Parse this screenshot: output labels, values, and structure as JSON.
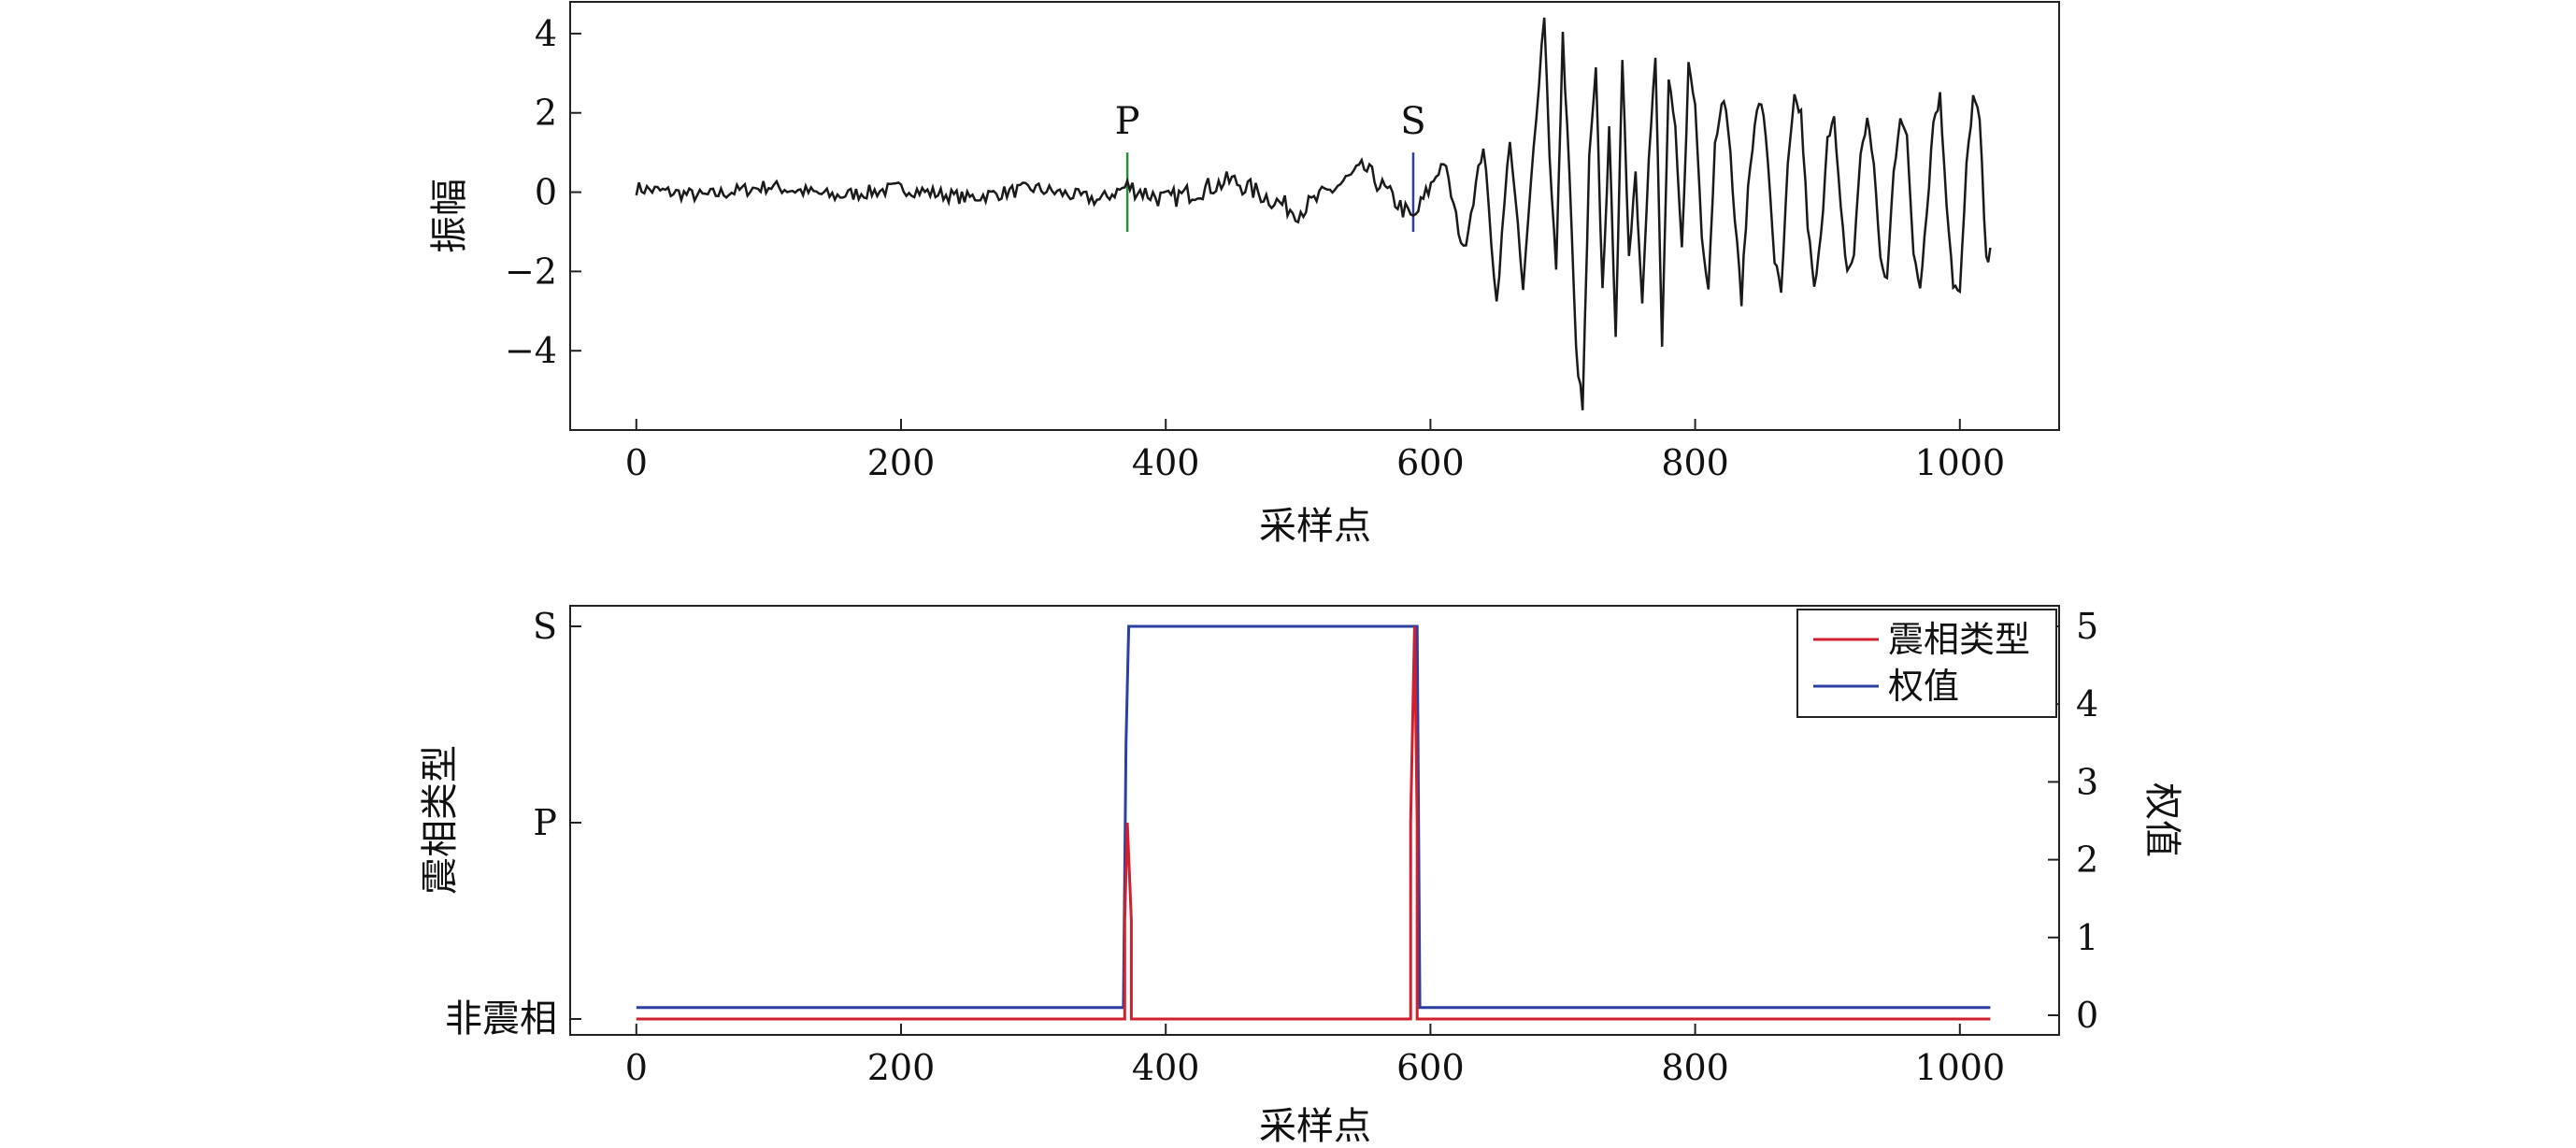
{
  "chart_data": [
    {
      "type": "line",
      "xlabel": "采样点",
      "ylabel": "振幅",
      "xlim": [
        -50,
        1075
      ],
      "ylim": [
        -6,
        4.8
      ],
      "xticks": [
        "0",
        "200",
        "400",
        "600",
        "800",
        "1000"
      ],
      "yticks": [
        "4",
        "2",
        "0",
        "−2",
        "−4"
      ],
      "grid": false,
      "markers": [
        {
          "label": "P",
          "x": 371,
          "y_range": [
            -1,
            1
          ],
          "color": "#2e8b3a"
        },
        {
          "label": "S",
          "x": 587,
          "y_range": [
            -1,
            1
          ],
          "color": "#2b3fa0"
        }
      ],
      "series": [
        {
          "color": "#1a1a1a",
          "x": [
            0,
            50,
            100,
            150,
            200,
            250,
            300,
            350,
            371,
            400,
            450,
            500,
            550,
            587,
            610,
            625,
            640,
            650,
            660,
            670,
            680,
            686,
            690,
            695,
            700,
            705,
            710,
            715,
            720,
            725,
            730,
            735,
            740,
            745,
            750,
            755,
            760,
            765,
            770,
            775,
            780,
            785,
            790,
            795,
            800,
            805,
            810,
            815,
            820,
            825,
            830,
            835,
            840,
            845,
            850,
            855,
            860,
            865,
            870,
            875,
            880,
            885,
            890,
            895,
            900,
            905,
            910,
            915,
            920,
            925,
            930,
            935,
            940,
            945,
            950,
            955,
            960,
            965,
            970,
            975,
            980,
            985,
            990,
            995,
            1000,
            1005,
            1010,
            1015,
            1020,
            1023
          ],
          "y": [
            0.1,
            -0.1,
            0.15,
            -0.1,
            0.1,
            -0.15,
            0.1,
            -0.2,
            0.15,
            -0.2,
            0.3,
            -0.5,
            0.6,
            -0.7,
            0.8,
            -1.5,
            1.2,
            -2.8,
            1.4,
            -2.5,
            2.0,
            4.5,
            1.0,
            -2.0,
            3.9,
            0.5,
            -4.0,
            -5.5,
            0.8,
            3.0,
            -2.5,
            1.5,
            -3.5,
            3.2,
            -1.5,
            0.5,
            -2.8,
            1.0,
            3.4,
            -3.9,
            2.8,
            1.5,
            -1.5,
            3.2,
            2.2,
            -1.0,
            -2.4,
            1.2,
            2.4,
            1.7,
            -0.7,
            -2.7,
            0.1,
            1.8,
            2.3,
            0.8,
            -1.7,
            -2.6,
            0.6,
            2.3,
            2.0,
            -0.8,
            -2.5,
            -1.2,
            1.5,
            1.8,
            -0.5,
            -2.0,
            -1.6,
            1.0,
            1.8,
            0.8,
            -1.8,
            -2.2,
            0.5,
            2.0,
            1.3,
            -1.5,
            -2.3,
            -0.5,
            1.8,
            2.4,
            -0.2,
            -2.3,
            -2.6,
            0.6,
            2.4,
            1.8,
            -1.8,
            -1.4
          ]
        }
      ]
    },
    {
      "type": "line",
      "xlabel": "采样点",
      "ylabel_left": "震相类型",
      "ylabel_right": "权值",
      "xlim": [
        -50,
        1075
      ],
      "ylim_left": [
        0,
        2
      ],
      "ylim_right": [
        -0.1,
        5.2
      ],
      "xticks": [
        "0",
        "200",
        "400",
        "600",
        "800",
        "1000"
      ],
      "yticks_left": [
        "S",
        "P",
        "非震相"
      ],
      "yticks_right": [
        "5",
        "4",
        "3",
        "2",
        "1",
        "0"
      ],
      "grid": false,
      "legend_position": "top-right",
      "series": [
        {
          "name": "震相类型",
          "axis": "left",
          "color": "#d0202e",
          "x": [
            0,
            369,
            369,
            371,
            371,
            374,
            374,
            585,
            585,
            588,
            588,
            590,
            590,
            1023
          ],
          "y": [
            0,
            0,
            0.5,
            1,
            1,
            0.5,
            0,
            0,
            1,
            2,
            2,
            1,
            0,
            0
          ]
        },
        {
          "name": "权值",
          "axis": "right",
          "color": "#2b3fa0",
          "x": [
            0,
            368,
            370,
            372,
            589,
            590,
            592,
            1023
          ],
          "y": [
            0.1,
            0.1,
            3.5,
            5,
            5,
            5,
            0.1,
            0.1
          ]
        }
      ]
    }
  ]
}
